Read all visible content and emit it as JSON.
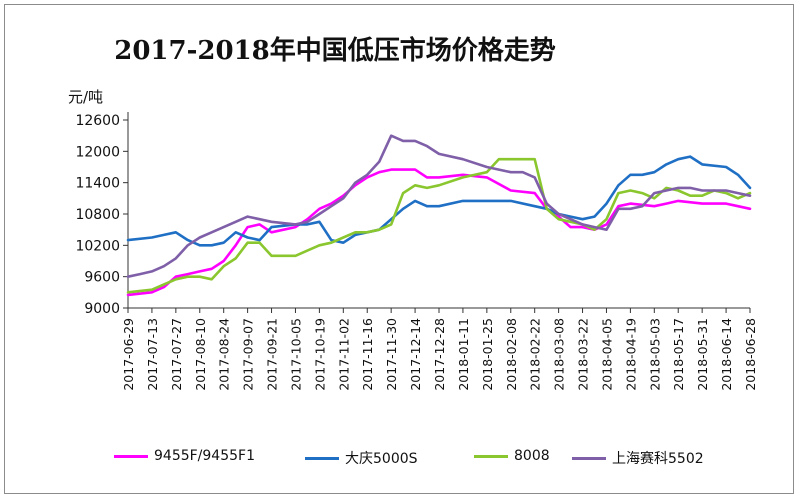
{
  "chart_data": {
    "type": "line",
    "title": "2017-2018年中国低压市场价格走势",
    "ylabel": "元/吨",
    "ylim": [
      9000,
      12600
    ],
    "yticks": [
      9000,
      9600,
      10200,
      10800,
      11400,
      12000,
      12600
    ],
    "x_ticks": [
      "2017-06-29",
      "2017-07-13",
      "2017-07-27",
      "2017-08-10",
      "2017-08-24",
      "2017-09-07",
      "2017-09-21",
      "2017-10-05",
      "2017-10-19",
      "2017-11-02",
      "2017-11-16",
      "2017-11-30",
      "2017-12-14",
      "2017-12-28",
      "2018-01-11",
      "2018-01-25",
      "2018-02-08",
      "2018-02-22",
      "2018-03-08",
      "2018-03-22",
      "2018-04-05",
      "2018-04-19",
      "2018-05-03",
      "2018-05-17",
      "2018-05-31",
      "2018-06-14",
      "2018-06-28"
    ],
    "grid": false,
    "legend_position": "bottom",
    "series": [
      {
        "name": "9455F/9455F1",
        "color": "#ff00ff",
        "points": [
          [
            "2017-06-29",
            9250
          ],
          [
            "2017-07-13",
            9300
          ],
          [
            "2017-07-20",
            9400
          ],
          [
            "2017-07-27",
            9600
          ],
          [
            "2017-08-03",
            9650
          ],
          [
            "2017-08-10",
            9700
          ],
          [
            "2017-08-17",
            9750
          ],
          [
            "2017-08-24",
            9900
          ],
          [
            "2017-08-31",
            10200
          ],
          [
            "2017-09-07",
            10550
          ],
          [
            "2017-09-14",
            10600
          ],
          [
            "2017-09-21",
            10450
          ],
          [
            "2017-10-05",
            10550
          ],
          [
            "2017-10-12",
            10700
          ],
          [
            "2017-10-19",
            10900
          ],
          [
            "2017-10-26",
            11000
          ],
          [
            "2017-11-02",
            11150
          ],
          [
            "2017-11-09",
            11350
          ],
          [
            "2017-11-16",
            11500
          ],
          [
            "2017-11-23",
            11600
          ],
          [
            "2017-11-30",
            11650
          ],
          [
            "2017-12-14",
            11650
          ],
          [
            "2017-12-21",
            11500
          ],
          [
            "2017-12-28",
            11500
          ],
          [
            "2018-01-11",
            11550
          ],
          [
            "2018-01-25",
            11500
          ],
          [
            "2018-02-08",
            11250
          ],
          [
            "2018-02-22",
            11200
          ],
          [
            "2018-03-01",
            10900
          ],
          [
            "2018-03-08",
            10750
          ],
          [
            "2018-03-15",
            10550
          ],
          [
            "2018-03-22",
            10550
          ],
          [
            "2018-03-29",
            10500
          ],
          [
            "2018-04-05",
            10600
          ],
          [
            "2018-04-12",
            10950
          ],
          [
            "2018-04-19",
            11000
          ],
          [
            "2018-05-03",
            10950
          ],
          [
            "2018-05-10",
            11000
          ],
          [
            "2018-05-17",
            11050
          ],
          [
            "2018-05-31",
            11000
          ],
          [
            "2018-06-14",
            11000
          ],
          [
            "2018-06-21",
            10950
          ],
          [
            "2018-06-28",
            10900
          ]
        ]
      },
      {
        "name": "大庆5000S",
        "color": "#1f6fc5",
        "points": [
          [
            "2017-06-29",
            10300
          ],
          [
            "2017-07-13",
            10350
          ],
          [
            "2017-07-20",
            10400
          ],
          [
            "2017-07-27",
            10450
          ],
          [
            "2017-08-03",
            10300
          ],
          [
            "2017-08-10",
            10200
          ],
          [
            "2017-08-17",
            10200
          ],
          [
            "2017-08-24",
            10250
          ],
          [
            "2017-08-31",
            10450
          ],
          [
            "2017-09-07",
            10350
          ],
          [
            "2017-09-14",
            10300
          ],
          [
            "2017-09-21",
            10550
          ],
          [
            "2017-10-05",
            10600
          ],
          [
            "2017-10-12",
            10600
          ],
          [
            "2017-10-19",
            10650
          ],
          [
            "2017-10-26",
            10300
          ],
          [
            "2017-11-02",
            10250
          ],
          [
            "2017-11-09",
            10400
          ],
          [
            "2017-11-16",
            10450
          ],
          [
            "2017-11-23",
            10500
          ],
          [
            "2017-11-30",
            10700
          ],
          [
            "2017-12-07",
            10900
          ],
          [
            "2017-12-14",
            11050
          ],
          [
            "2017-12-21",
            10950
          ],
          [
            "2017-12-28",
            10950
          ],
          [
            "2018-01-11",
            11050
          ],
          [
            "2018-01-25",
            11050
          ],
          [
            "2018-02-08",
            11050
          ],
          [
            "2018-02-22",
            10950
          ],
          [
            "2018-03-01",
            10900
          ],
          [
            "2018-03-08",
            10800
          ],
          [
            "2018-03-15",
            10750
          ],
          [
            "2018-03-22",
            10700
          ],
          [
            "2018-03-29",
            10750
          ],
          [
            "2018-04-05",
            11000
          ],
          [
            "2018-04-12",
            11350
          ],
          [
            "2018-04-19",
            11550
          ],
          [
            "2018-04-26",
            11550
          ],
          [
            "2018-05-03",
            11600
          ],
          [
            "2018-05-10",
            11750
          ],
          [
            "2018-05-17",
            11850
          ],
          [
            "2018-05-24",
            11900
          ],
          [
            "2018-05-31",
            11750
          ],
          [
            "2018-06-14",
            11700
          ],
          [
            "2018-06-21",
            11550
          ],
          [
            "2018-06-28",
            11300
          ]
        ]
      },
      {
        "name": "8008",
        "color": "#8ac62e",
        "points": [
          [
            "2017-06-29",
            9300
          ],
          [
            "2017-07-13",
            9350
          ],
          [
            "2017-07-20",
            9450
          ],
          [
            "2017-07-27",
            9550
          ],
          [
            "2017-08-03",
            9600
          ],
          [
            "2017-08-10",
            9600
          ],
          [
            "2017-08-17",
            9550
          ],
          [
            "2017-08-24",
            9800
          ],
          [
            "2017-08-31",
            9950
          ],
          [
            "2017-09-07",
            10250
          ],
          [
            "2017-09-14",
            10250
          ],
          [
            "2017-09-21",
            10000
          ],
          [
            "2017-10-05",
            10000
          ],
          [
            "2017-10-12",
            10100
          ],
          [
            "2017-10-19",
            10200
          ],
          [
            "2017-10-26",
            10250
          ],
          [
            "2017-11-02",
            10350
          ],
          [
            "2017-11-09",
            10450
          ],
          [
            "2017-11-16",
            10450
          ],
          [
            "2017-11-23",
            10500
          ],
          [
            "2017-11-30",
            10600
          ],
          [
            "2017-12-07",
            11200
          ],
          [
            "2017-12-14",
            11350
          ],
          [
            "2017-12-21",
            11300
          ],
          [
            "2017-12-28",
            11350
          ],
          [
            "2018-01-11",
            11500
          ],
          [
            "2018-01-25",
            11600
          ],
          [
            "2018-02-01",
            11850
          ],
          [
            "2018-02-08",
            11850
          ],
          [
            "2018-02-22",
            11850
          ],
          [
            "2018-03-01",
            10900
          ],
          [
            "2018-03-08",
            10700
          ],
          [
            "2018-03-15",
            10650
          ],
          [
            "2018-03-22",
            10600
          ],
          [
            "2018-03-29",
            10500
          ],
          [
            "2018-04-05",
            10700
          ],
          [
            "2018-04-12",
            11200
          ],
          [
            "2018-04-19",
            11250
          ],
          [
            "2018-04-26",
            11200
          ],
          [
            "2018-05-03",
            11100
          ],
          [
            "2018-05-10",
            11300
          ],
          [
            "2018-05-17",
            11250
          ],
          [
            "2018-05-24",
            11150
          ],
          [
            "2018-05-31",
            11150
          ],
          [
            "2018-06-07",
            11250
          ],
          [
            "2018-06-14",
            11200
          ],
          [
            "2018-06-21",
            11100
          ],
          [
            "2018-06-28",
            11200
          ]
        ]
      },
      {
        "name": "上海赛科5502",
        "color": "#7f5fa8",
        "points": [
          [
            "2017-06-29",
            9600
          ],
          [
            "2017-07-06",
            9650
          ],
          [
            "2017-07-13",
            9700
          ],
          [
            "2017-07-20",
            9800
          ],
          [
            "2017-07-27",
            9950
          ],
          [
            "2017-08-03",
            10200
          ],
          [
            "2017-08-10",
            10350
          ],
          [
            "2017-08-17",
            10450
          ],
          [
            "2017-08-24",
            10550
          ],
          [
            "2017-08-31",
            10650
          ],
          [
            "2017-09-07",
            10750
          ],
          [
            "2017-09-14",
            10700
          ],
          [
            "2017-09-21",
            10650
          ],
          [
            "2017-10-05",
            10600
          ],
          [
            "2017-10-12",
            10650
          ],
          [
            "2017-10-19",
            10800
          ],
          [
            "2017-10-26",
            10950
          ],
          [
            "2017-11-02",
            11100
          ],
          [
            "2017-11-09",
            11400
          ],
          [
            "2017-11-16",
            11550
          ],
          [
            "2017-11-23",
            11800
          ],
          [
            "2017-11-30",
            12300
          ],
          [
            "2017-12-07",
            12200
          ],
          [
            "2017-12-14",
            12200
          ],
          [
            "2017-12-21",
            12100
          ],
          [
            "2017-12-28",
            11950
          ],
          [
            "2018-01-11",
            11850
          ],
          [
            "2018-01-25",
            11700
          ],
          [
            "2018-02-08",
            11600
          ],
          [
            "2018-02-15",
            11600
          ],
          [
            "2018-02-22",
            11500
          ],
          [
            "2018-03-01",
            11000
          ],
          [
            "2018-03-08",
            10800
          ],
          [
            "2018-03-15",
            10700
          ],
          [
            "2018-03-22",
            10600
          ],
          [
            "2018-03-29",
            10550
          ],
          [
            "2018-04-05",
            10500
          ],
          [
            "2018-04-12",
            10900
          ],
          [
            "2018-04-19",
            10900
          ],
          [
            "2018-04-26",
            10950
          ],
          [
            "2018-05-03",
            11200
          ],
          [
            "2018-05-10",
            11250
          ],
          [
            "2018-05-17",
            11300
          ],
          [
            "2018-05-24",
            11300
          ],
          [
            "2018-05-31",
            11250
          ],
          [
            "2018-06-14",
            11250
          ],
          [
            "2018-06-21",
            11200
          ],
          [
            "2018-06-28",
            11150
          ]
        ]
      }
    ]
  }
}
